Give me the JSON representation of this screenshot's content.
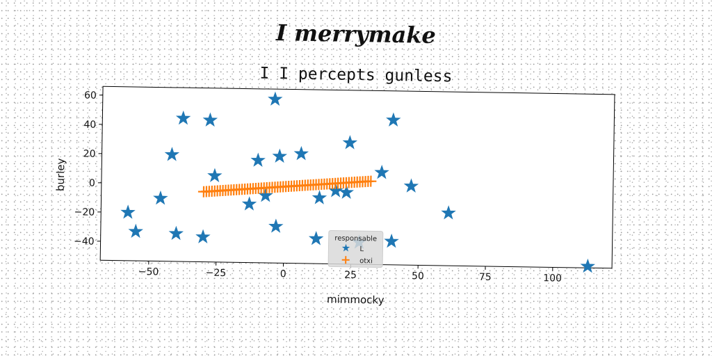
{
  "figure": {
    "suptitle": "I merrymake",
    "title": "I I percepts gunless"
  },
  "chart_data": {
    "type": "scatter",
    "title": "I I percepts gunless",
    "xlabel": "mimmocky",
    "ylabel": "burley",
    "xlim": [
      -68,
      122
    ],
    "ylim": [
      -53,
      66
    ],
    "xticks": [
      -50,
      -25,
      0,
      25,
      50,
      75,
      100
    ],
    "yticks": [
      -40,
      -20,
      0,
      20,
      40,
      60
    ],
    "xtick_labels": [
      "−50",
      "−25",
      "0",
      "25",
      "50",
      "75",
      "100"
    ],
    "ytick_labels": [
      "−40",
      "−20",
      "0",
      "20",
      "40",
      "60"
    ],
    "grid": false,
    "legend": {
      "title": "responsable",
      "placement": "lower-center"
    },
    "series": [
      {
        "name": "L",
        "marker": "star",
        "color": "#1f77b4",
        "points": [
          [
            -4,
            59
          ],
          [
            -38,
            45
          ],
          [
            -28,
            44
          ],
          [
            40,
            46
          ],
          [
            24,
            30
          ],
          [
            -42,
            20
          ],
          [
            -10,
            17
          ],
          [
            -2,
            20
          ],
          [
            6,
            22
          ],
          [
            -26,
            6
          ],
          [
            36,
            10
          ],
          [
            47,
            1
          ],
          [
            -46,
            -10
          ],
          [
            -7,
            -7
          ],
          [
            -13,
            -13
          ],
          [
            13,
            -8
          ],
          [
            19,
            -3
          ],
          [
            23,
            -4
          ],
          [
            -58,
            -20
          ],
          [
            61,
            -17
          ],
          [
            -55,
            -33
          ],
          [
            -40,
            -34
          ],
          [
            -30,
            -36
          ],
          [
            -3,
            -28
          ],
          [
            12,
            -36
          ],
          [
            28,
            -38
          ],
          [
            40,
            -37
          ],
          [
            113,
            -52
          ]
        ]
      },
      {
        "name": "otxi",
        "marker": "plus",
        "color": "#ff7f0e",
        "line": {
          "x_from": -30,
          "x_to": 32,
          "y_from": -5,
          "y_to": 4,
          "count": 62
        }
      }
    ]
  }
}
